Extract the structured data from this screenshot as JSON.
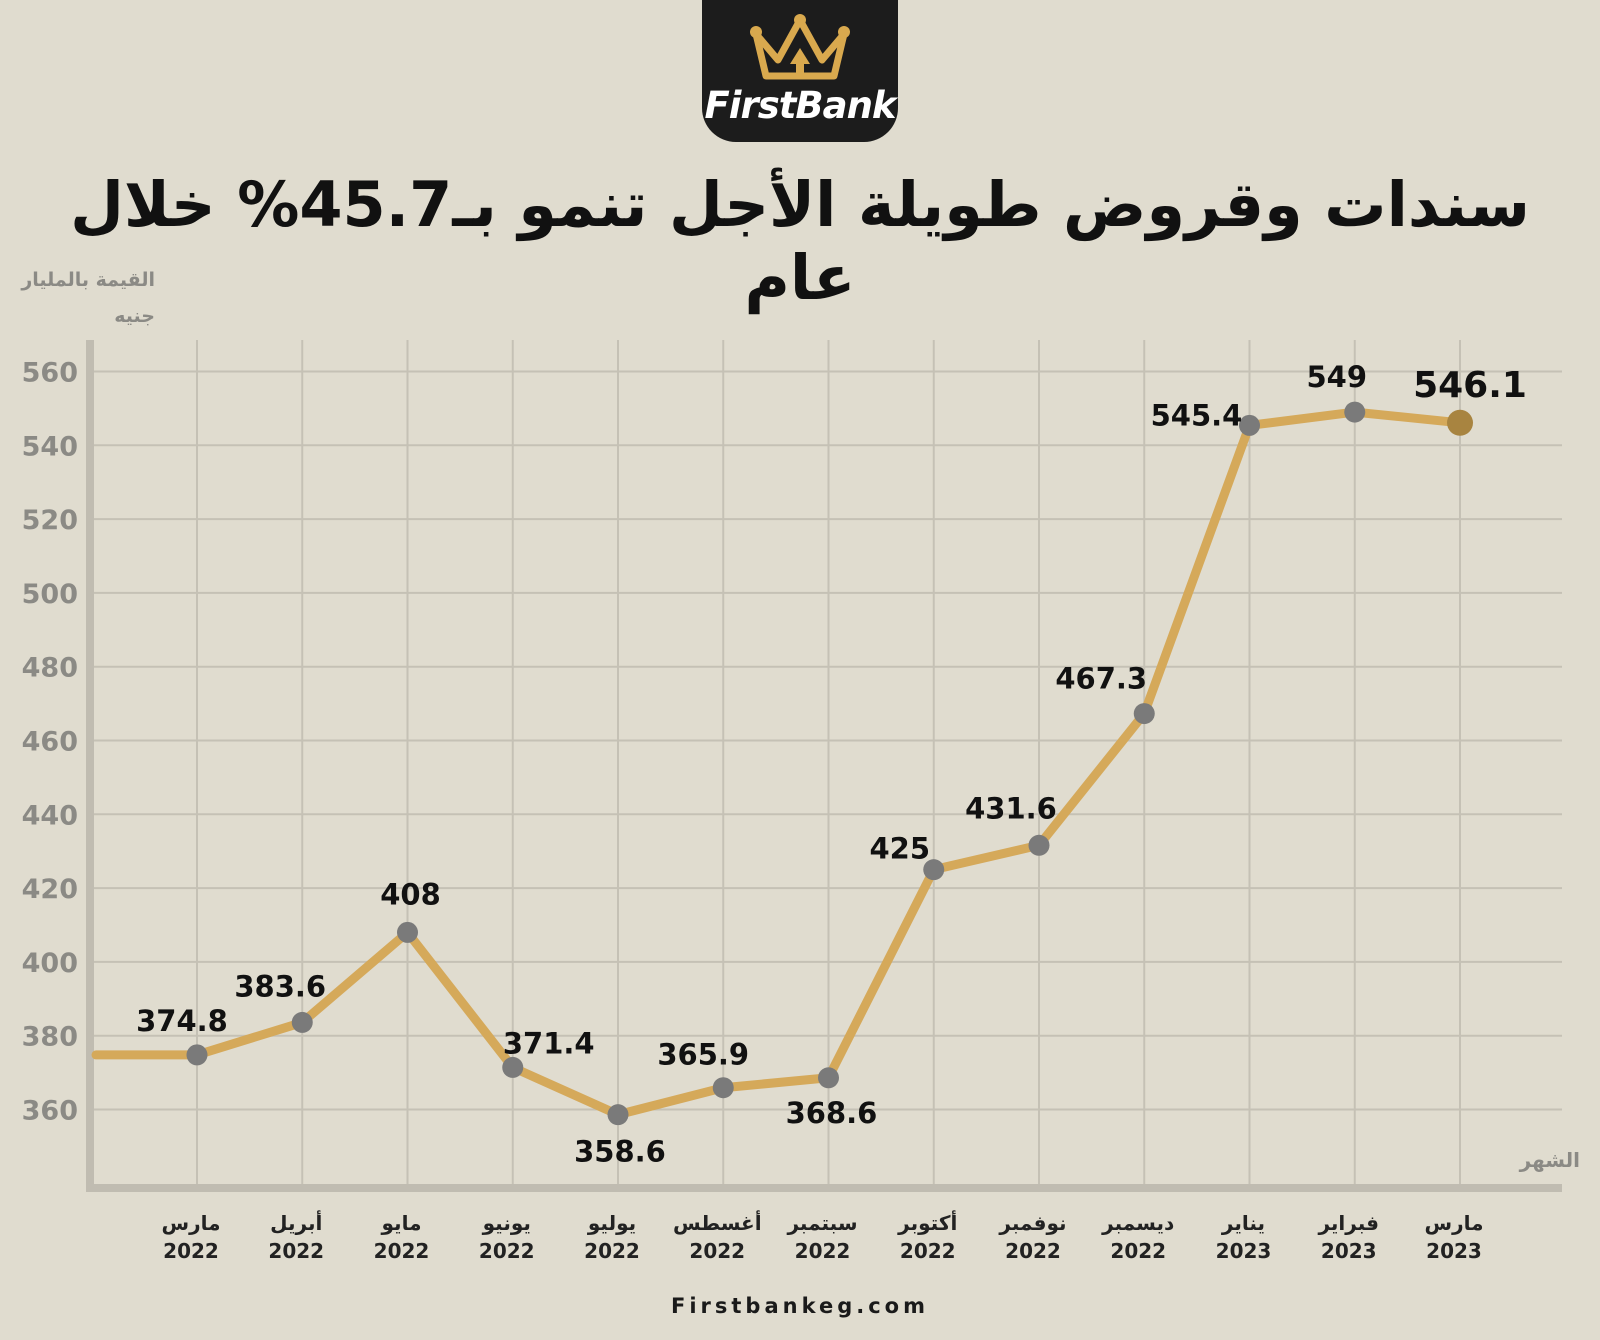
{
  "logo": {
    "text": "FirstBank"
  },
  "title": "سندات وقروض طويلة الأجل تنمو بـ45.7% خلال عام",
  "footer": "Firstbankeg.com",
  "colors": {
    "background": "#e0dccf",
    "line": "#d5a95a",
    "marker": "#7a7a7a",
    "marker_last": "#a88440",
    "grid": "#c5c1b5",
    "axis": "#c0bcb1",
    "logo_bg": "#1c1c1c",
    "logo_gold": "#d9a94e"
  },
  "chart_data": {
    "type": "line",
    "title": "سندات وقروض طويلة الأجل تنمو بـ45.7% خلال عام",
    "ylabel": "القيمة بالمليار جنيه",
    "xlabel": "الشهر",
    "ylim": [
      340,
      565
    ],
    "yticks": [
      360,
      380,
      400,
      420,
      440,
      460,
      480,
      500,
      520,
      540,
      560
    ],
    "grid": true,
    "categories": [
      {
        "month": "مارس",
        "year": "2022"
      },
      {
        "month": "أبريل",
        "year": "2022"
      },
      {
        "month": "مايو",
        "year": "2022"
      },
      {
        "month": "يونيو",
        "year": "2022"
      },
      {
        "month": "يوليو",
        "year": "2022"
      },
      {
        "month": "أغسطس",
        "year": "2022"
      },
      {
        "month": "سبتمبر",
        "year": "2022"
      },
      {
        "month": "أكتوبر",
        "year": "2022"
      },
      {
        "month": "نوفمبر",
        "year": "2022"
      },
      {
        "month": "ديسمبر",
        "year": "2022"
      },
      {
        "month": "يناير",
        "year": "2023"
      },
      {
        "month": "فبراير",
        "year": "2023"
      },
      {
        "month": "مارس",
        "year": "2023"
      }
    ],
    "series": [
      {
        "values": [
          374.8,
          383.6,
          408,
          371.4,
          358.6,
          365.9,
          368.6,
          425,
          431.6,
          467.3,
          545.4,
          549,
          546.1
        ],
        "labels": [
          "374.8",
          "383.6",
          "408",
          "371.4",
          "358.6",
          "365.9",
          "368.6",
          "425",
          "431.6",
          "467.3",
          "545.4",
          "549",
          "546.1"
        ]
      }
    ]
  }
}
